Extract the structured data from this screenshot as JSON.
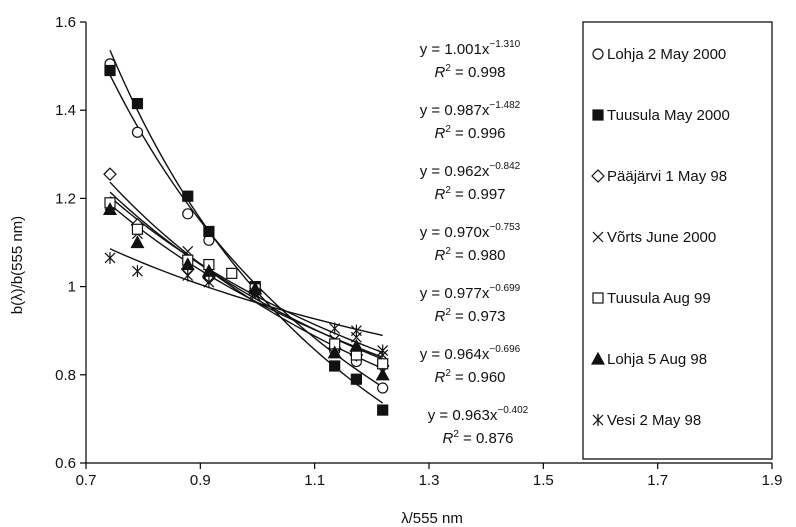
{
  "chart_data": {
    "type": "scatter",
    "xlabel": "λ/555 nm",
    "ylabel": "b(λ)/b(555 nm)",
    "xlim": [
      0.7,
      1.9
    ],
    "ylim": [
      0.6,
      1.6
    ],
    "xticks": [
      "0.7",
      "0.9",
      "1.1",
      "1.3",
      "1.5",
      "1.7",
      "1.9"
    ],
    "yticks": [
      "0.6",
      "0.8",
      "1",
      "1.2",
      "1.4",
      "1.6"
    ],
    "grid": false,
    "legend_position": "right",
    "series": [
      {
        "name": "Lohja 2 May 2000",
        "marker": "open-circle",
        "x": [
          0.742,
          0.79,
          0.878,
          0.915,
          0.996,
          1.135,
          1.173,
          1.219
        ],
        "y": [
          1.505,
          1.35,
          1.165,
          1.105,
          0.99,
          0.855,
          0.83,
          0.77
        ],
        "fit": {
          "a": 1.001,
          "b": -1.31,
          "r2": "0.998",
          "equation": "y = 1.001x",
          "exponent": "−1.310"
        }
      },
      {
        "name": "Tuusula May 2000",
        "marker": "filled-square",
        "x": [
          0.742,
          0.79,
          0.878,
          0.915,
          0.996,
          1.135,
          1.173,
          1.219
        ],
        "y": [
          1.49,
          1.415,
          1.205,
          1.125,
          1.0,
          0.82,
          0.79,
          0.72
        ],
        "fit": {
          "a": 0.987,
          "b": -1.482,
          "r2": "0.996",
          "equation": "y = 0.987x",
          "exponent": "−1.482"
        }
      },
      {
        "name": "Pääjärvi 1 May 98",
        "marker": "open-diamond",
        "x": [
          0.742,
          0.79,
          0.878,
          0.915,
          0.996,
          1.135,
          1.173,
          1.219
        ],
        "y": [
          1.255,
          1.14,
          1.04,
          1.02,
          0.99,
          0.86,
          0.845,
          0.82
        ],
        "fit": {
          "a": 0.962,
          "b": -0.842,
          "r2": "0.997",
          "equation": "y = 0.962x",
          "exponent": "−0.842"
        }
      },
      {
        "name": "Võrts June 2000",
        "marker": "x-cross",
        "x": [
          0.742,
          0.79,
          0.878,
          0.915,
          0.996,
          1.135,
          1.173,
          1.219
        ],
        "y": [
          1.185,
          1.12,
          1.08,
          1.03,
          0.98,
          0.88,
          0.885,
          0.845
        ],
        "fit": {
          "a": 0.97,
          "b": -0.753,
          "r2": "0.980",
          "equation": "y = 0.970x",
          "exponent": "−0.753"
        }
      },
      {
        "name": "Tuusula Aug 99",
        "marker": "open-square",
        "x": [
          0.742,
          0.79,
          0.878,
          0.915,
          0.955,
          0.996,
          1.135,
          1.173,
          1.219
        ],
        "y": [
          1.19,
          1.13,
          1.06,
          1.05,
          1.03,
          0.995,
          0.87,
          0.845,
          0.825
        ],
        "fit": {
          "a": 0.977,
          "b": -0.699,
          "r2": "0.973",
          "equation": "y = 0.977x",
          "exponent": "−0.699"
        }
      },
      {
        "name": "Lohja 5 Aug 98",
        "marker": "filled-triangle",
        "x": [
          0.742,
          0.79,
          0.878,
          0.915,
          0.996,
          1.135,
          1.173,
          1.219
        ],
        "y": [
          1.175,
          1.1,
          1.05,
          1.035,
          0.995,
          0.85,
          0.865,
          0.8
        ],
        "fit": {
          "a": 0.964,
          "b": -0.696,
          "r2": "0.960",
          "equation": "y = 0.964x",
          "exponent": "−0.696"
        }
      },
      {
        "name": "Vesi 2 May 98",
        "marker": "asterisk",
        "x": [
          0.742,
          0.79,
          0.878,
          0.915,
          0.996,
          1.135,
          1.173,
          1.219
        ],
        "y": [
          1.065,
          1.035,
          1.025,
          1.01,
          0.985,
          0.905,
          0.9,
          0.855
        ],
        "fit": {
          "a": 0.963,
          "b": -0.402,
          "r2": "0.876",
          "equation": "y = 0.963x",
          "exponent": "−0.402"
        }
      }
    ]
  }
}
